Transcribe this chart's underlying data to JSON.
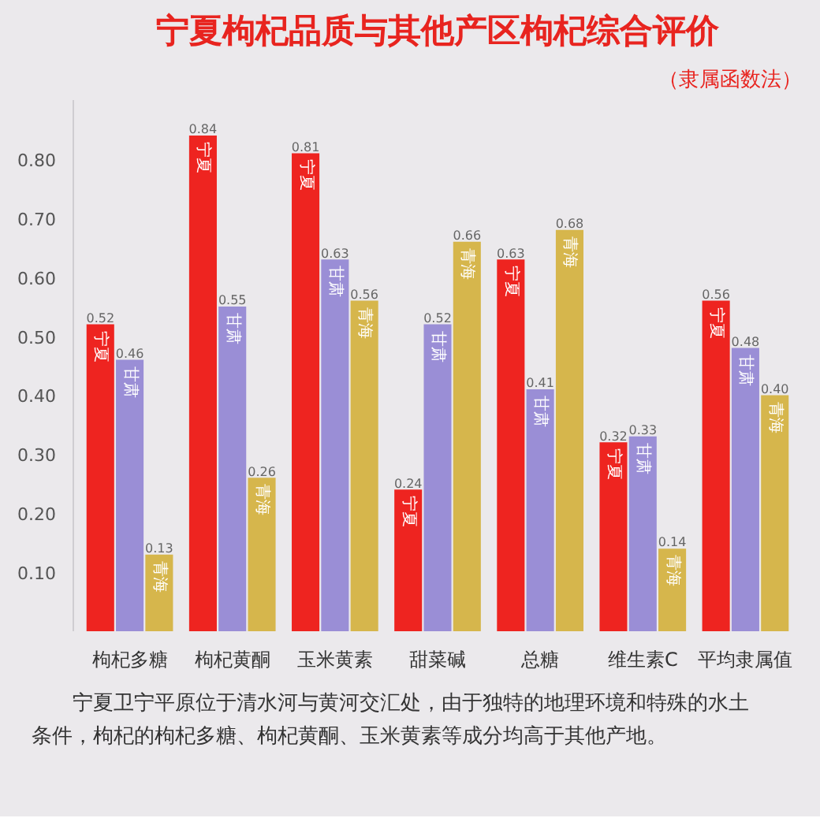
{
  "chart_data": {
    "type": "bar",
    "title": "宁夏枸杞品质与其他产区枸杞综合评价",
    "subtitle": "（隶属函数法）",
    "categories": [
      "枸杞多糖",
      "枸杞黄酮",
      "玉米黄素",
      "甜菜碱",
      "总糖",
      "维生素C",
      "平均隶属值"
    ],
    "series": [
      {
        "name": "宁夏",
        "color": "#ee2420",
        "values": [
          0.52,
          0.84,
          0.81,
          0.24,
          0.63,
          0.32,
          0.56
        ],
        "value_labels": [
          "0.52",
          "0.84",
          "0.81",
          "0.24",
          "0.63",
          "0.32",
          "0.56"
        ]
      },
      {
        "name": "甘肃",
        "color": "#9a8ed6",
        "values": [
          0.46,
          0.55,
          0.63,
          0.52,
          0.41,
          0.33,
          0.48
        ],
        "value_labels": [
          "0.46",
          "0.55",
          "0.63",
          "0.52",
          "0.41",
          "0.33",
          "0.48"
        ]
      },
      {
        "name": "青海",
        "color": "#d6b64c",
        "values": [
          0.13,
          0.26,
          0.56,
          0.66,
          0.68,
          0.14,
          0.4
        ],
        "value_labels": [
          "0.13",
          "0.26",
          "0.56",
          "0.66",
          "0.68",
          "0.14",
          "0.40"
        ]
      }
    ],
    "ylim": [
      0,
      0.9
    ],
    "yticks": [
      {
        "value": 0.1,
        "label": "0.10"
      },
      {
        "value": 0.2,
        "label": "0.20"
      },
      {
        "value": 0.3,
        "label": "0.30"
      },
      {
        "value": 0.4,
        "label": "0.40"
      },
      {
        "value": 0.5,
        "label": "0.50"
      },
      {
        "value": 0.6,
        "label": "0.60"
      },
      {
        "value": 0.7,
        "label": "0.70"
      },
      {
        "value": 0.8,
        "label": "0.80"
      }
    ],
    "annotations": [
      "宁夏卫宁平原位于清水河与黄河交汇处，由于独特的地理环境和特殊的水土条件，枸杞的枸杞多糖、枸杞黄酮、玉米黄素等成分均高于其他产地。"
    ]
  }
}
